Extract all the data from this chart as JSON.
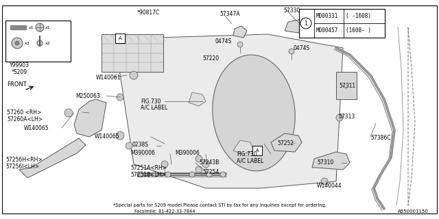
{
  "bg_color": "#ffffff",
  "diagram_id": "A550001150",
  "bottom_text_line1": "*Special parts for S209 model.Please contact STI by fax for any inquiries except for ordering.",
  "bottom_text_line2": "Facsimile: 81-422-33-7844",
  "parts_table_rows": [
    [
      "M000331",
      "( -1608)"
    ],
    [
      "M000457",
      "(1608- )"
    ]
  ],
  "line_color": "#555555",
  "light_fill": "#e8e8e8",
  "white_fill": "#ffffff"
}
